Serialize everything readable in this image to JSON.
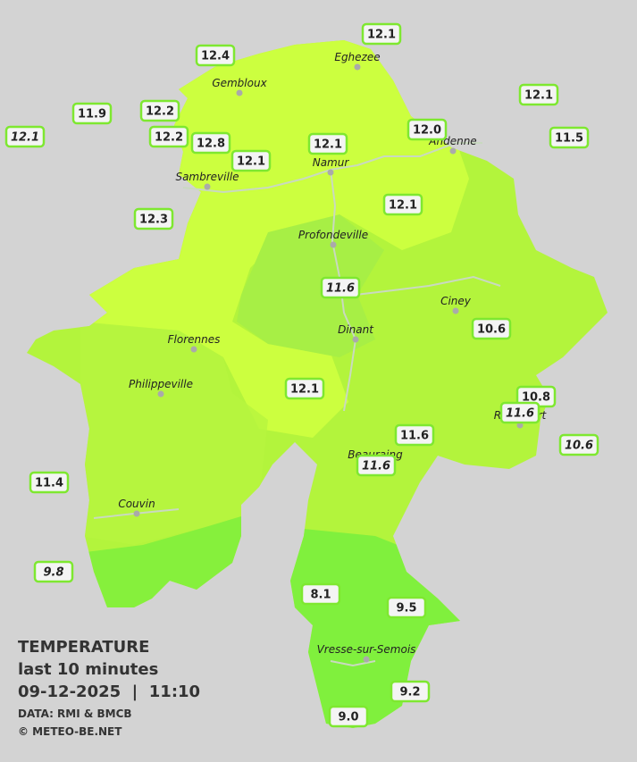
{
  "legend": {
    "title": "TEMPERATURE",
    "subtitle": "last 10 minutes",
    "datetime": "09-12-2025  |  11:10",
    "source": "DATA: RMI & BMCB",
    "copyright": "© METEO-BE.NET"
  },
  "cities": [
    "Eghezee",
    "Gembloux",
    "Namur",
    "Andenne",
    "Sambreville",
    "Profondeville",
    "Ciney",
    "Dinant",
    "Florennes",
    "Philippeville",
    "Rochefort",
    "Beauraing",
    "Couvin",
    "Vresse-sur-Semois"
  ],
  "stations": [
    "12.1",
    "12.4",
    "12.1",
    "11.9",
    "12.2",
    "12.1",
    "12.2",
    "12.8",
    "12.1",
    "12.0",
    "11.5",
    "12.1",
    "12.3",
    "12.1",
    "11.6",
    "10.6",
    "12.1",
    "10.8",
    "11.6",
    "11.6",
    "10.6",
    "11.6",
    "11.4",
    "9.8",
    "8.1",
    "9.5",
    "9.2",
    "9.0"
  ]
}
